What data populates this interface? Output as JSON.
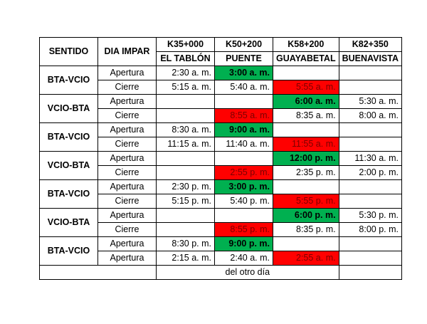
{
  "headers": {
    "sentido": "SENTIDO",
    "dia": "DIA IMPAR",
    "k1_km": "K35+000",
    "k1_name": "EL TABLÓN",
    "k2_km": "K50+200",
    "k2_name": "PUENTE",
    "k3_km": "K58+200",
    "k3_name": "GUAYABETAL",
    "k4_km": "K82+350",
    "k4_name": "BUENAVISTA"
  },
  "highlight_colors": {
    "green": "#00b050",
    "red": "#ff0000"
  },
  "rows": [
    {
      "sentido": "BTA-VCIO",
      "dia": "Apertura",
      "k1": "2:30 a. m.",
      "k2": "3:00 a. m.",
      "k3": "",
      "k4": ""
    },
    {
      "dia": "Cierre",
      "k1": "5:15 a. m.",
      "k2": "5:40 a. m.",
      "k3": "5:55 a. m.",
      "k4": ""
    },
    {
      "sentido": "VCIO-BTA",
      "dia": "Apertura",
      "k1": "",
      "k2": "",
      "k3": "6:00 a. m.",
      "k4": "5:30 a. m."
    },
    {
      "dia": "Cierre",
      "k1": "",
      "k2": "8:55 a. m.",
      "k3": "8:35 a. m.",
      "k4": "8:00 a. m."
    },
    {
      "sentido": "BTA-VCIO",
      "dia": "Apertura",
      "k1": "8:30 a. m.",
      "k2": "9:00 a. m.",
      "k3": "",
      "k4": ""
    },
    {
      "dia": "Cierre",
      "k1": "11:15 a. m.",
      "k2": "11:40 a. m.",
      "k3": "11:55 a. m.",
      "k4": ""
    },
    {
      "sentido": "VCIO-BTA",
      "dia": "Apertura",
      "k1": "",
      "k2": "",
      "k3": "12:00 p. m.",
      "k4": "11:30 a. m."
    },
    {
      "dia": "Cierre",
      "k1": "",
      "k2": "2:55 p. m.",
      "k3": "2:35 p. m.",
      "k4": "2:00 p. m."
    },
    {
      "sentido": "BTA-VCIO",
      "dia": "Apertura",
      "k1": "2:30 p. m.",
      "k2": "3:00 p. m.",
      "k3": "",
      "k4": ""
    },
    {
      "dia": "Cierre",
      "k1": "5:15 p. m.",
      "k2": "5:40 p. m.",
      "k3": "5:55 p. m.",
      "k4": ""
    },
    {
      "sentido": "VCIO-BTA",
      "dia": "Apertura",
      "k1": "",
      "k2": "",
      "k3": "6:00 p. m.",
      "k4": "5:30 p. m."
    },
    {
      "dia": "Cierre",
      "k1": "",
      "k2": "8:55 p. m.",
      "k3": "8:35 p. m.",
      "k4": "8:00 p. m."
    },
    {
      "sentido": "BTA-VCIO",
      "dia": "Apertura",
      "k1": "8:30 p. m.",
      "k2": "9:00 p. m.",
      "k3": "",
      "k4": ""
    },
    {
      "dia": "Apertura",
      "k1": "2:15 a. m.",
      "k2": "2:40 a. m.",
      "k3": "2:55 a. m.",
      "k4": ""
    }
  ],
  "footer": "del otro día"
}
